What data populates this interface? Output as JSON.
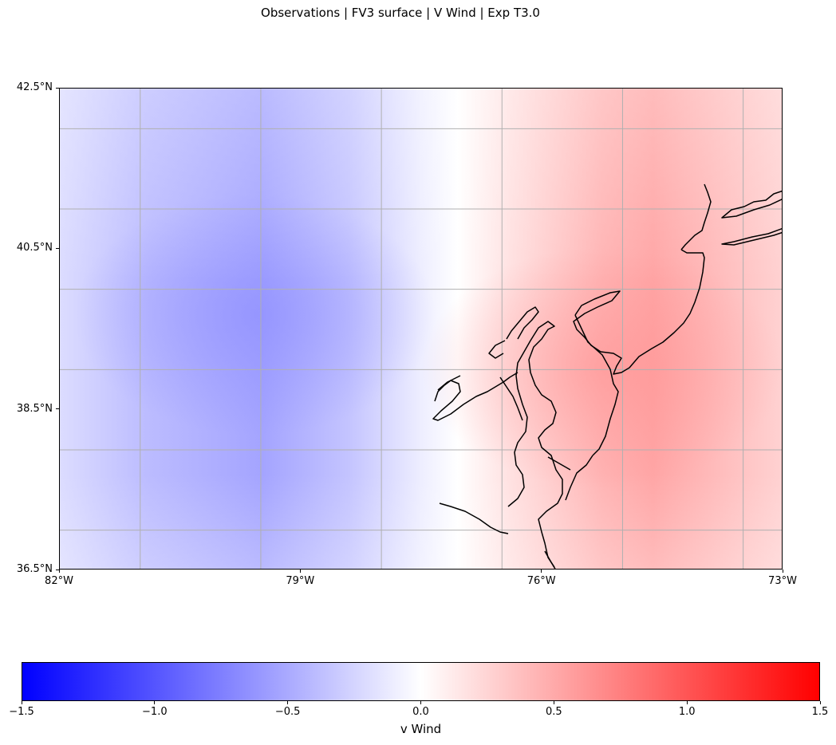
{
  "figure": {
    "title": "Observations | FV3 surface | V Wind | Exp T3.0"
  },
  "map": {
    "projection": "PlateCarree",
    "extent": {
      "lon_min": -82,
      "lon_max": -73,
      "lat_min": 36.5,
      "lat_max": 42.5
    },
    "gridlines_lon": [
      -81,
      -79.5,
      -78,
      -76.5,
      -75,
      -73.5
    ],
    "gridlines_lat": [
      37,
      38,
      39,
      40,
      41,
      42
    ],
    "x_ticks": [
      {
        "value": -82,
        "label": "82°W"
      },
      {
        "value": -79,
        "label": "79°W"
      },
      {
        "value": -76,
        "label": "76°W"
      },
      {
        "value": -73,
        "label": "73°W"
      }
    ],
    "y_ticks": [
      {
        "value": 42.5,
        "label": "42.5°N"
      },
      {
        "value": 40.5,
        "label": "40.5°N"
      },
      {
        "value": 38.5,
        "label": "38.5°N"
      },
      {
        "value": 36.5,
        "label": "36.5°N"
      }
    ],
    "features": [
      "coastline"
    ],
    "gridline_color": "#b0b0b0",
    "coastline_color": "#000000"
  },
  "colorbar": {
    "label": "v Wind",
    "cmap": "bwr",
    "vmin": -1.5,
    "vmax": 1.5,
    "ticks": [
      {
        "value": -1.5,
        "label": "−1.5"
      },
      {
        "value": -1.0,
        "label": "−1.0"
      },
      {
        "value": -0.5,
        "label": "−0.5"
      },
      {
        "value": 0.0,
        "label": "0.0"
      },
      {
        "value": 0.5,
        "label": "0.5"
      },
      {
        "value": 1.0,
        "label": "1.0"
      },
      {
        "value": 1.5,
        "label": "1.5"
      }
    ],
    "colors": {
      "low": "#0000ff",
      "mid": "#ffffff",
      "high": "#ff0000"
    }
  },
  "field": {
    "variable": "V Wind",
    "description_points": [
      {
        "lon": -79.5,
        "lat": 39.7,
        "value": -0.7
      },
      {
        "lon": -77.0,
        "lat": 39.5,
        "value": 0.0
      },
      {
        "lon": -75.0,
        "lat": 39.3,
        "value": 0.65
      }
    ]
  }
}
